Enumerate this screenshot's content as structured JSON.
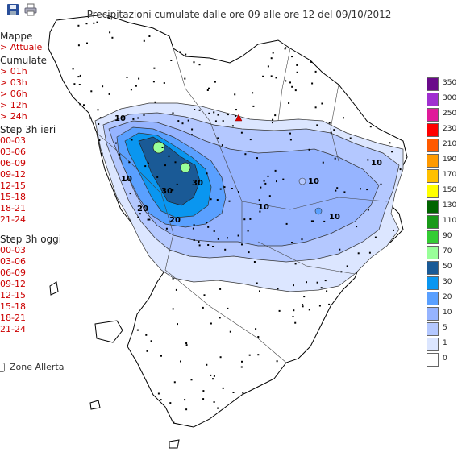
{
  "header": {
    "title": "Precipitazioni cumulate dalle ore 09 alle ore 12 del 09/10/2012",
    "save_icon": "floppy-disk-icon",
    "print_icon": "printer-icon"
  },
  "sidebar": {
    "sections": [
      {
        "title": "Mappe",
        "items": [
          "> Attuale"
        ]
      },
      {
        "title": "Cumulate",
        "items": [
          "> 01h",
          "> 03h",
          "> 06h",
          "> 12h",
          "> 24h"
        ]
      },
      {
        "title": "Step 3h ieri",
        "items": [
          "00-03",
          "03-06",
          "06-09",
          "09-12",
          "12-15",
          "15-18",
          "18-21",
          "21-24"
        ]
      },
      {
        "title": "Step 3h oggi",
        "items": [
          "00-03",
          "03-06",
          "06-09",
          "09-12",
          "12-15",
          "15-18",
          "18-21",
          "21-24"
        ]
      }
    ],
    "zone_label": "Zone Allerta"
  },
  "legend": {
    "levels": [
      {
        "value": "350",
        "color": "#6a0a8a"
      },
      {
        "value": "300",
        "color": "#a030d0"
      },
      {
        "value": "250",
        "color": "#e01a9a"
      },
      {
        "value": "230",
        "color": "#ff0000"
      },
      {
        "value": "210",
        "color": "#ff5a00"
      },
      {
        "value": "190",
        "color": "#ff9a00"
      },
      {
        "value": "170",
        "color": "#ffc000"
      },
      {
        "value": "150",
        "color": "#ffff00"
      },
      {
        "value": "130",
        "color": "#006400"
      },
      {
        "value": "110",
        "color": "#199a19"
      },
      {
        "value": "90",
        "color": "#33cc33"
      },
      {
        "value": "70",
        "color": "#99ff99"
      },
      {
        "value": "50",
        "color": "#1a5a96"
      },
      {
        "value": "30",
        "color": "#0a96f0"
      },
      {
        "value": "20",
        "color": "#5aa0ff"
      },
      {
        "value": "10",
        "color": "#96b4ff"
      },
      {
        "value": "5",
        "color": "#b4c8ff"
      },
      {
        "value": "1",
        "color": "#dce6ff"
      },
      {
        "value": "0",
        "color": "#ffffff"
      }
    ]
  },
  "map": {
    "contour_labels": [
      "10",
      "10",
      "10",
      "10",
      "10",
      "20",
      "20",
      "30",
      "30",
      "10"
    ],
    "colors": {
      "outline": "#000000",
      "c1": "#dce6ff",
      "c5": "#b4c8ff",
      "c10": "#96b4ff",
      "c20": "#5aa0ff",
      "c30": "#0a96f0",
      "c50": "#1a5a96",
      "c70": "#99ff99",
      "marker": "#e00000"
    }
  }
}
